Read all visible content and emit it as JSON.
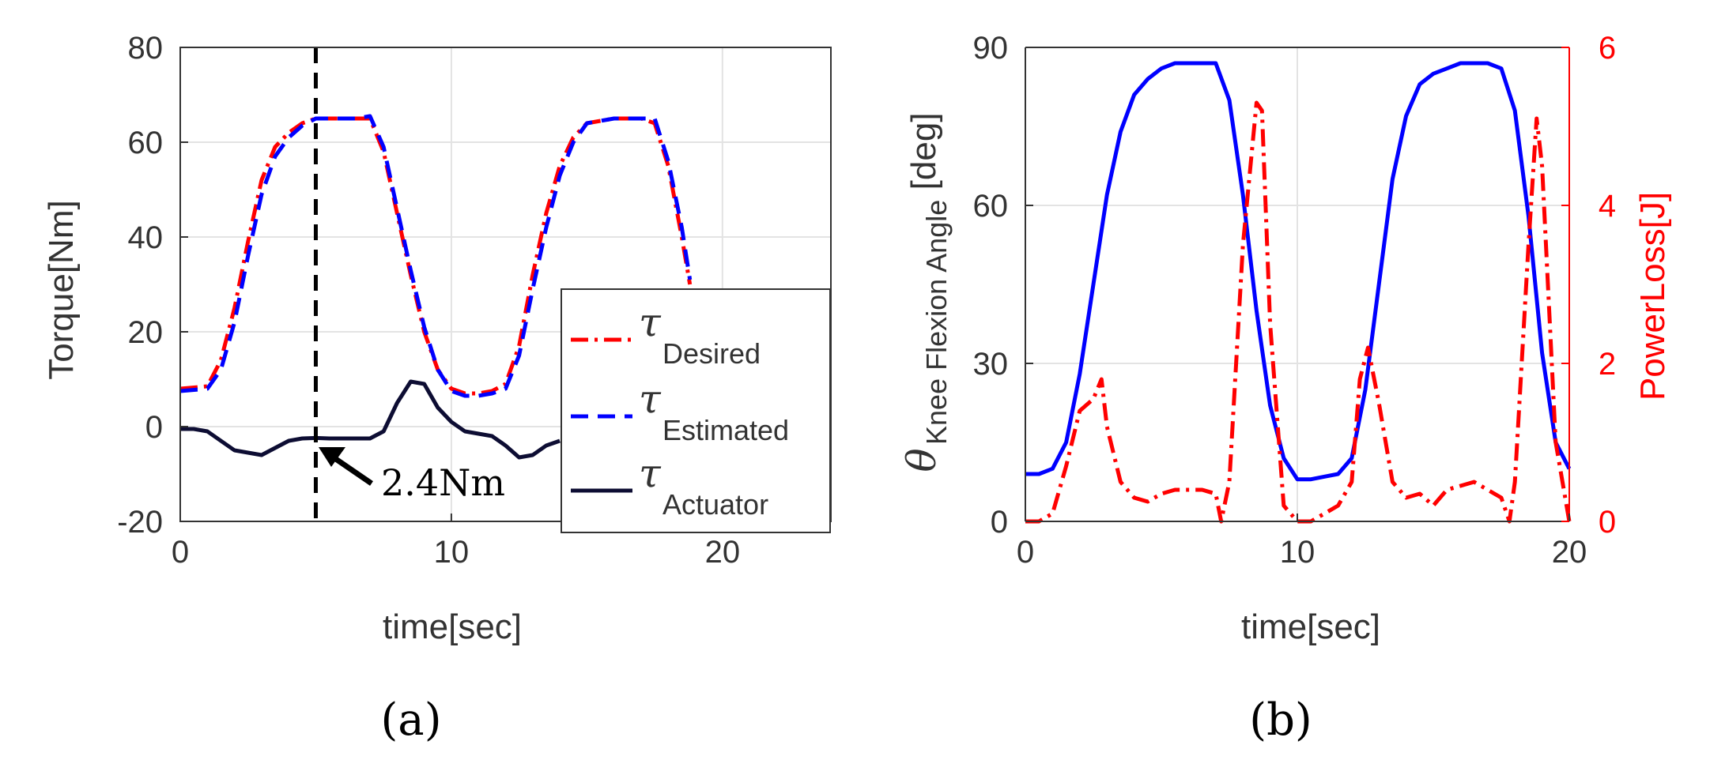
{
  "chart_data": [
    {
      "type": "line",
      "panel_label": "(a)",
      "xlabel": "time[sec]",
      "ylabel": "Torque[Nm]",
      "xlim": [
        0,
        24
      ],
      "ylim": [
        -20,
        80
      ],
      "xticks": [
        0,
        10,
        20
      ],
      "yticks": [
        -20,
        0,
        20,
        40,
        60,
        80
      ],
      "grid": true,
      "legend_position": "bottom-right",
      "legend_symbol": "τ",
      "series": [
        {
          "name": "Desired",
          "color": "#ff0000",
          "style": "dash-dot",
          "x": [
            0,
            1,
            1.5,
            2,
            2.5,
            3,
            3.5,
            4,
            4.5,
            5,
            5.5,
            6,
            6.5,
            7,
            7.5,
            8,
            8.5,
            9,
            9.5,
            10,
            10.5,
            11,
            11.5,
            12,
            12.5,
            13,
            13.5,
            14,
            14.5,
            15,
            15.5,
            16,
            16.5,
            17,
            17.5,
            18,
            18.5,
            18.8
          ],
          "y": [
            8,
            8.5,
            14,
            25,
            39,
            52,
            59,
            62,
            64,
            65,
            65,
            65,
            65,
            65,
            58,
            45,
            32,
            20,
            12,
            8,
            7,
            7,
            7.5,
            9,
            17,
            32,
            45,
            55,
            61,
            64,
            64.5,
            65,
            65,
            65,
            64,
            55,
            40,
            30
          ]
        },
        {
          "name": "Estimated",
          "color": "#0000ff",
          "style": "dash",
          "x": [
            0,
            1,
            1.5,
            2,
            2.5,
            3,
            3.5,
            4,
            4.5,
            5,
            5.5,
            6,
            6.5,
            7,
            7.5,
            8,
            8.5,
            9,
            9.5,
            10,
            10.5,
            11,
            11.5,
            12,
            12.5,
            13,
            13.5,
            14,
            14.5,
            15,
            15.5,
            16,
            16.5,
            17,
            17.5,
            18,
            18.5,
            18.8
          ],
          "y": [
            7.5,
            8,
            12,
            22,
            36,
            49,
            57,
            61,
            63.5,
            65,
            65,
            65,
            65,
            65.5,
            59,
            46,
            33,
            21,
            12,
            7.5,
            6.5,
            6.5,
            7,
            8,
            15,
            29,
            42,
            53,
            60,
            64,
            64.5,
            65,
            65,
            65,
            65,
            56,
            42,
            31
          ]
        },
        {
          "name": "Actuator",
          "color": "#0d0d33",
          "style": "solid",
          "x": [
            0,
            0.5,
            1,
            1.5,
            2,
            2.5,
            3,
            3.5,
            4,
            4.5,
            5,
            5.5,
            6,
            6.5,
            7,
            7.5,
            8,
            8.5,
            9,
            9.5,
            10,
            10.5,
            11,
            11.5,
            12,
            12.5,
            13,
            13.5,
            14
          ],
          "y": [
            -0.5,
            -0.5,
            -1,
            -3,
            -5,
            -5.5,
            -6,
            -4.5,
            -3,
            -2.5,
            -2.4,
            -2.5,
            -2.5,
            -2.5,
            -2.5,
            -1,
            5,
            9.5,
            9,
            4,
            1,
            -1,
            -1.5,
            -2,
            -4,
            -6.5,
            -6,
            -4,
            -3
          ]
        }
      ],
      "vertical_marker_x": 5,
      "annotation": {
        "text": "2.4Nm",
        "x": 5,
        "y": -2.4
      }
    },
    {
      "type": "line",
      "panel_label": "(b)",
      "xlabel": "time[sec]",
      "ylabel_left": "θ",
      "ylabel_left_subscript": "Knee Flexion Angle",
      "ylabel_left_unit": "[deg]",
      "ylabel_right": "PowerLoss[J]",
      "xlim": [
        0,
        20
      ],
      "ylim_left": [
        0,
        90
      ],
      "ylim_right": [
        0,
        6
      ],
      "xticks": [
        0,
        10,
        20
      ],
      "yticks_left": [
        0,
        30,
        60,
        90
      ],
      "yticks_right": [
        0,
        2,
        4,
        6
      ],
      "grid": true,
      "right_axis_color": "#ff0000",
      "series": [
        {
          "axis": "left",
          "color": "#0000ff",
          "style": "solid",
          "x": [
            0,
            0.5,
            1,
            1.5,
            2,
            2.5,
            3,
            3.5,
            4,
            4.5,
            5,
            5.5,
            6,
            6.5,
            7,
            7.5,
            8,
            8.5,
            9,
            9.5,
            10,
            10.5,
            11,
            11.5,
            12,
            12.5,
            13,
            13.5,
            14,
            14.5,
            15,
            15.5,
            16,
            16.5,
            17,
            17.5,
            18,
            18.5,
            19,
            19.5,
            20
          ],
          "y": [
            9,
            9,
            10,
            15,
            28,
            45,
            62,
            74,
            81,
            84,
            86,
            87,
            87,
            87,
            87,
            80,
            62,
            40,
            22,
            12,
            8,
            8,
            8.5,
            9,
            12,
            25,
            45,
            65,
            77,
            83,
            85,
            86,
            87,
            87,
            87,
            86,
            78,
            58,
            32,
            15,
            10
          ]
        },
        {
          "axis": "right",
          "color": "#ff0000",
          "style": "dash-dot",
          "x": [
            0,
            0.5,
            1,
            1.5,
            2,
            2.5,
            2.8,
            3,
            3.5,
            4,
            4.5,
            5,
            5.5,
            6,
            6.5,
            7,
            7.2,
            7.5,
            8,
            8.5,
            8.7,
            9,
            9.5,
            10,
            10.5,
            11,
            11.5,
            12,
            12.3,
            12.6,
            13,
            13.5,
            14,
            14.5,
            15,
            15.5,
            16,
            16.5,
            17,
            17.5,
            17.8,
            18,
            18.5,
            18.8,
            19,
            19.5,
            20
          ],
          "y": [
            0,
            0,
            0.1,
            0.7,
            1.4,
            1.55,
            1.8,
            1.2,
            0.5,
            0.3,
            0.25,
            0.35,
            0.4,
            0.4,
            0.4,
            0.35,
            0,
            0.5,
            3.5,
            5.3,
            5.2,
            2.5,
            0.2,
            0,
            0,
            0.1,
            0.2,
            0.5,
            1.8,
            2.2,
            1.5,
            0.5,
            0.3,
            0.35,
            0.2,
            0.4,
            0.45,
            0.5,
            0.4,
            0.3,
            0,
            0.5,
            3.5,
            5.1,
            4.5,
            1,
            0
          ]
        }
      ]
    }
  ]
}
